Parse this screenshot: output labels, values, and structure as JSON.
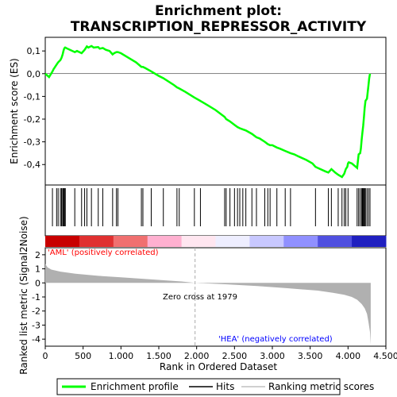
{
  "chart_data": {
    "type": "line",
    "title_line1": "Enrichment plot:",
    "title_line2": "TRANSCRIPTION_REPRESSOR_ACTIVITY",
    "top_panel": {
      "ylabel": "Enrichment score (ES)",
      "ylim": [
        -0.49,
        0.16
      ],
      "yticks": [
        0.1,
        0.0,
        -0.1,
        -0.2,
        -0.3,
        -0.4
      ],
      "ytick_labels": [
        "0,1",
        "0,0",
        "-0,1",
        "-0,2",
        "-0,3",
        "-0,4"
      ],
      "series": [
        {
          "name": "Enrichment profile",
          "color": "#00ff00",
          "x": [
            0,
            50,
            95,
            110,
            150,
            170,
            200,
            215,
            230,
            240,
            250,
            260,
            265,
            280,
            390,
            420,
            480,
            520,
            550,
            570,
            610,
            640,
            700,
            720,
            760,
            800,
            850,
            890,
            910,
            940,
            960,
            1000,
            1100,
            1200,
            1270,
            1290,
            1320,
            1400,
            1500,
            1560,
            1700,
            1740,
            1770,
            1850,
            1970,
            2050,
            2150,
            2250,
            2370,
            2390,
            2440,
            2500,
            2540,
            2570,
            2610,
            2650,
            2730,
            2790,
            2830,
            2900,
            2940,
            2970,
            3000,
            3060,
            3100,
            3170,
            3240,
            3290,
            3350,
            3450,
            3530,
            3570,
            3600,
            3700,
            3740,
            3780,
            3830,
            3870,
            3920,
            3950,
            3970,
            3990,
            4000,
            4010,
            4050,
            4120,
            4140,
            4160,
            4170,
            4180,
            4190,
            4200,
            4210,
            4220,
            4230,
            4250,
            4270,
            4280,
            4290
          ],
          "y": [
            0.0,
            -0.015,
            0.01,
            0.02,
            0.04,
            0.05,
            0.06,
            0.07,
            0.085,
            0.1,
            0.11,
            0.115,
            0.115,
            0.112,
            0.095,
            0.1,
            0.09,
            0.105,
            0.12,
            0.115,
            0.122,
            0.115,
            0.117,
            0.11,
            0.113,
            0.105,
            0.1,
            0.085,
            0.09,
            0.095,
            0.095,
            0.09,
            0.07,
            0.05,
            0.03,
            0.03,
            0.025,
            0.01,
            -0.01,
            -0.02,
            -0.05,
            -0.06,
            -0.065,
            -0.08,
            -0.105,
            -0.12,
            -0.14,
            -0.16,
            -0.19,
            -0.2,
            -0.21,
            -0.225,
            -0.235,
            -0.24,
            -0.245,
            -0.25,
            -0.265,
            -0.28,
            -0.285,
            -0.3,
            -0.31,
            -0.315,
            -0.315,
            -0.325,
            -0.33,
            -0.34,
            -0.35,
            -0.355,
            -0.365,
            -0.38,
            -0.395,
            -0.41,
            -0.415,
            -0.43,
            -0.435,
            -0.42,
            -0.435,
            -0.445,
            -0.455,
            -0.44,
            -0.42,
            -0.41,
            -0.395,
            -0.39,
            -0.395,
            -0.415,
            -0.355,
            -0.35,
            -0.33,
            -0.29,
            -0.26,
            -0.23,
            -0.19,
            -0.15,
            -0.12,
            -0.11,
            -0.05,
            -0.02,
            0.0
          ]
        }
      ]
    },
    "hits": {
      "name": "Hits",
      "positions": [
        95,
        150,
        170,
        200,
        215,
        230,
        240,
        250,
        260,
        265,
        390,
        480,
        520,
        550,
        610,
        700,
        760,
        890,
        940,
        960,
        1270,
        1290,
        1400,
        1560,
        1740,
        1770,
        1970,
        2050,
        2370,
        2390,
        2440,
        2500,
        2540,
        2570,
        2610,
        2650,
        2730,
        2790,
        2900,
        2940,
        2970,
        3060,
        3170,
        3240,
        3570,
        3740,
        3780,
        3870,
        3920,
        3950,
        3970,
        4000,
        4120,
        4140,
        4160,
        4180,
        4190,
        4200,
        4210,
        4220,
        4230,
        4250,
        4270,
        4290
      ]
    },
    "rank_colorbar": {
      "colors": [
        "#c80000",
        "#e03030",
        "#f07070",
        "#ffb0d0",
        "#ffe6f0",
        "#eeeeff",
        "#c8c8ff",
        "#9090ff",
        "#5050e0",
        "#2020c0"
      ]
    },
    "bottom_panel": {
      "ylabel": "Ranked list metric (Signal2Noise)",
      "xlabel": "Rank in Ordered Dataset",
      "ylim": [
        -4.5,
        2.5
      ],
      "yticks": [
        2,
        1,
        0,
        -1,
        -2,
        -3,
        -4
      ],
      "ytick_labels": [
        "2",
        "1",
        "0",
        "-1",
        "-2",
        "-3",
        "-4"
      ],
      "metric_x": [
        0,
        30,
        80,
        200,
        400,
        700,
        1000,
        1400,
        1800,
        1979,
        2400,
        2800,
        3200,
        3600,
        3800,
        3950,
        4050,
        4120,
        4180,
        4220,
        4250,
        4270,
        4290,
        4300
      ],
      "metric_y": [
        1.35,
        1.1,
        0.95,
        0.8,
        0.65,
        0.5,
        0.4,
        0.25,
        0.1,
        0.0,
        -0.1,
        -0.22,
        -0.38,
        -0.55,
        -0.7,
        -0.85,
        -1.0,
        -1.2,
        -1.5,
        -1.8,
        -2.2,
        -2.8,
        -3.5,
        -4.4
      ],
      "label_pos": "'AML' (positively correlated)",
      "label_neg": "'HEA' (negatively correlated)",
      "zero_cross": "Zero cross at 1979",
      "zero_cross_rank": 1979
    },
    "xlim": [
      0,
      4500
    ],
    "xticks": [
      0,
      500,
      1000,
      1500,
      2000,
      2500,
      3000,
      3500,
      4000,
      4500
    ],
    "xtick_labels": [
      "0",
      "500",
      "1.000",
      "1.500",
      "2.000",
      "2.500",
      "3.000",
      "3.500",
      "4.000",
      "4.500"
    ],
    "legend": {
      "items": [
        "Enrichment profile",
        "Hits",
        "Ranking metric scores"
      ],
      "colors": [
        "#00ff00",
        "#000000",
        "#c0c0c0"
      ]
    },
    "colors": {
      "pos_label": "#ff0000",
      "neg_label": "#0000ff",
      "metric_fill": "#b0b0b0"
    }
  }
}
